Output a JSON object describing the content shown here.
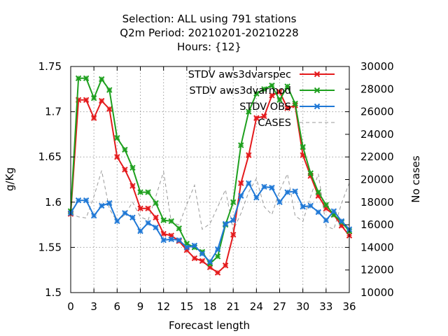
{
  "chart_data": {
    "type": "line",
    "title_lines": [
      "Selection: ALL using   791 stations",
      "Q2m   Period: 20210201-20210228",
      "Hours: {12}"
    ],
    "xlabel": "Forecast length",
    "ylabel": "g/Kg",
    "y2label": "No cases",
    "xlim": [
      0,
      36
    ],
    "ylim": [
      1.5,
      1.75
    ],
    "y2lim": [
      10000,
      30000
    ],
    "x_ticks": [
      "0",
      "3",
      "6",
      "9",
      "12",
      "15",
      "18",
      "21",
      "24",
      "27",
      "30",
      "33",
      "36"
    ],
    "y_ticks": [
      "1.5",
      "1.55",
      "1.6",
      "1.65",
      "1.7",
      "1.75"
    ],
    "y2_ticks": [
      "10000",
      "12000",
      "14000",
      "16000",
      "18000",
      "20000",
      "22000",
      "24000",
      "26000",
      "28000",
      "30000"
    ],
    "grid": true,
    "legend_position": "top-right",
    "x": [
      0,
      1,
      2,
      3,
      4,
      5,
      6,
      7,
      8,
      9,
      10,
      11,
      12,
      13,
      14,
      15,
      16,
      17,
      18,
      19,
      20,
      21,
      22,
      23,
      24,
      25,
      26,
      27,
      28,
      29,
      30,
      31,
      32,
      33,
      34,
      35,
      36
    ],
    "series": [
      {
        "name": "STDV aws3dvarspec",
        "color": "#e41a1c",
        "axis": "left",
        "values": [
          1.587,
          1.713,
          1.713,
          1.693,
          1.712,
          1.703,
          1.65,
          1.636,
          1.618,
          1.593,
          1.593,
          1.583,
          1.565,
          1.563,
          1.557,
          1.547,
          1.538,
          1.535,
          1.528,
          1.522,
          1.53,
          1.564,
          1.621,
          1.652,
          1.693,
          1.695,
          1.718,
          1.722,
          1.704,
          1.707,
          1.652,
          1.629,
          1.607,
          1.593,
          1.586,
          1.574,
          1.563
        ]
      },
      {
        "name": "STDV aws3dvarmod",
        "color": "#1ea01e",
        "axis": "left",
        "values": [
          1.59,
          1.737,
          1.737,
          1.715,
          1.736,
          1.724,
          1.671,
          1.658,
          1.638,
          1.611,
          1.611,
          1.599,
          1.58,
          1.579,
          1.571,
          1.554,
          1.55,
          1.545,
          1.532,
          1.54,
          1.575,
          1.6,
          1.663,
          1.7,
          1.72,
          1.725,
          1.729,
          1.713,
          1.728,
          1.709,
          1.661,
          1.632,
          1.611,
          1.597,
          1.586,
          1.578,
          1.568
        ]
      },
      {
        "name": "STDV OBS",
        "color": "#1f78d6",
        "axis": "left",
        "values": [
          1.588,
          1.602,
          1.602,
          1.585,
          1.596,
          1.599,
          1.579,
          1.588,
          1.583,
          1.568,
          1.577,
          1.572,
          1.558,
          1.559,
          1.558,
          1.55,
          1.552,
          1.543,
          1.534,
          1.548,
          1.576,
          1.58,
          1.607,
          1.621,
          1.605,
          1.617,
          1.616,
          1.6,
          1.611,
          1.612,
          1.595,
          1.596,
          1.589,
          1.58,
          1.59,
          1.579,
          1.57
        ]
      },
      {
        "name": "CASES",
        "color": "#999999",
        "axis": "right",
        "dashed": true,
        "values": [
          17000,
          16700,
          16600,
          18500,
          20800,
          17400,
          16300,
          16900,
          18000,
          16700,
          16400,
          18500,
          20700,
          16200,
          16000,
          17800,
          19500,
          15600,
          16100,
          17600,
          19100,
          15500,
          17000,
          18900,
          20100,
          17600,
          16900,
          19000,
          20500,
          16800,
          16300,
          18500,
          20500,
          15900,
          15600,
          17900,
          19700
        ]
      }
    ]
  }
}
